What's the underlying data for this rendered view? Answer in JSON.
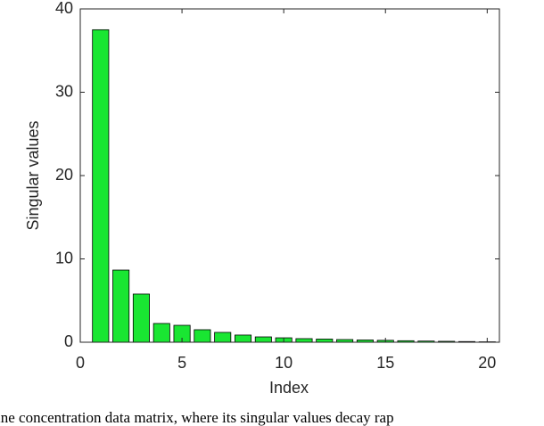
{
  "chart_data": {
    "type": "bar",
    "x": [
      1,
      2,
      3,
      4,
      5,
      6,
      7,
      8,
      9,
      10,
      11,
      12,
      13,
      14,
      15,
      16,
      17,
      18,
      19,
      20
    ],
    "values": [
      37.5,
      8.66,
      5.78,
      2.25,
      2.03,
      1.5,
      1.18,
      0.86,
      0.64,
      0.53,
      0.43,
      0.38,
      0.32,
      0.27,
      0.23,
      0.18,
      0.14,
      0.11,
      0.08,
      0.05
    ],
    "color": "#19e632",
    "xlabel": "Index",
    "ylabel": "Singular values",
    "xlim": [
      0,
      20.6
    ],
    "xticks": [
      0,
      5,
      10,
      15,
      20
    ],
    "ylim": [
      0,
      40
    ],
    "yticks": [
      0,
      10,
      20,
      30,
      40
    ]
  },
  "caption": "ine concentration data matrix, where its singular values decay rap"
}
